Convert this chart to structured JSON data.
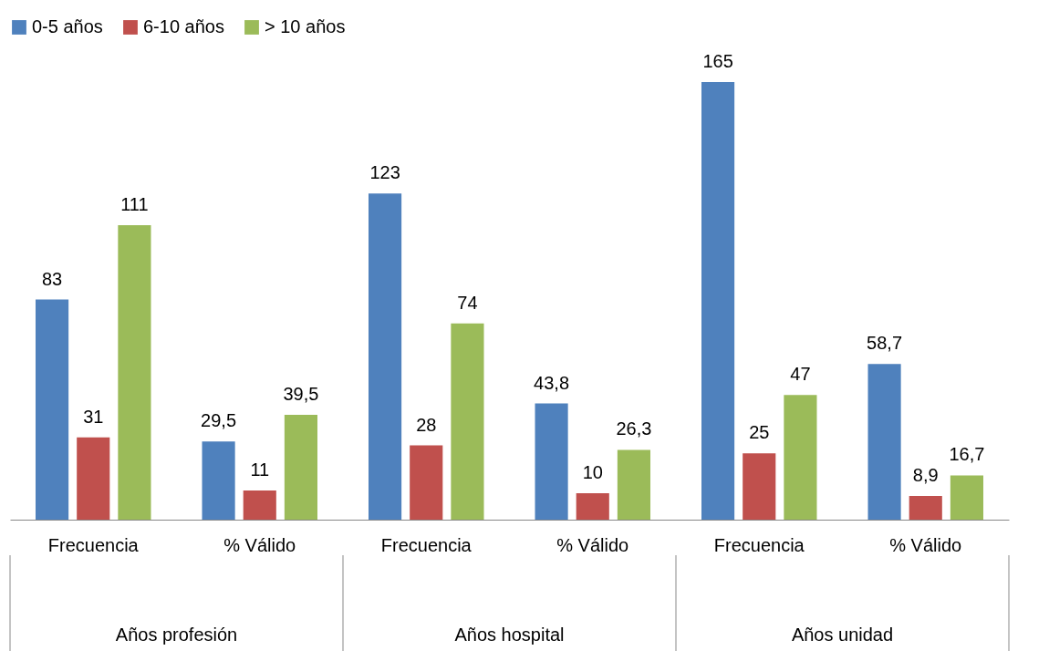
{
  "chart_data": {
    "type": "bar",
    "categories": [
      "Frecuencia",
      "% Válido",
      "Frecuencia",
      "% Válido",
      "Frecuencia",
      "% Válido"
    ],
    "series": [
      {
        "name": "0-5 años",
        "color": "#4f81bd",
        "values": [
          83,
          29.5,
          123,
          43.8,
          165,
          58.7
        ],
        "value_labels": [
          "83",
          "29,5",
          "123",
          "43,8",
          "165",
          "58,7"
        ]
      },
      {
        "name": "6-10 años",
        "color": "#c0504d",
        "values": [
          31,
          11,
          28,
          10,
          25,
          8.9
        ],
        "value_labels": [
          "31",
          "11",
          "28",
          "10",
          "25",
          "8,9"
        ]
      },
      {
        "name": "> 10 años",
        "color": "#9bbb59",
        "values": [
          111,
          39.5,
          74,
          26.3,
          47,
          16.7
        ],
        "value_labels": [
          "111",
          "39,5",
          "74",
          "26,3",
          "47",
          "16,7"
        ]
      }
    ],
    "annotations": [
      "Años profesión",
      "Años hospital",
      "Años unidad"
    ],
    "legend": "top",
    "grid": false
  }
}
